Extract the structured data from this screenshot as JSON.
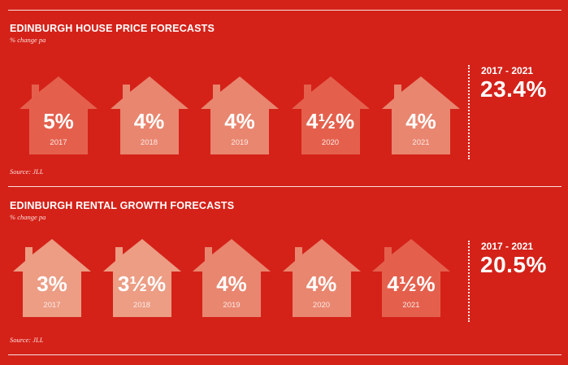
{
  "chart_data": [
    {
      "type": "pictogram",
      "title": "EDINBURGH HOUSE PRICE FORECASTS",
      "subtitle": "% change pa",
      "source": "Source: JLL",
      "categories": [
        "2017",
        "2018",
        "2019",
        "2020",
        "2021"
      ],
      "values": [
        5,
        4,
        4,
        4.5,
        4
      ],
      "value_labels": [
        "5%",
        "4%",
        "4%",
        "4½%",
        "4%"
      ],
      "total": {
        "label": "2017 - 2021",
        "value": "23.4%"
      },
      "colors": [
        "#e4604d",
        "#e9866f",
        "#e9866f",
        "#e4604d",
        "#e9866f"
      ]
    },
    {
      "type": "pictogram",
      "title": "EDINBURGH RENTAL GROWTH FORECASTS",
      "subtitle": "% change pa",
      "source": "Source: JLL",
      "categories": [
        "2017",
        "2018",
        "2019",
        "2020",
        "2021"
      ],
      "values": [
        3,
        3.5,
        4,
        4,
        4.5
      ],
      "value_labels": [
        "3%",
        "3½%",
        "4%",
        "4%",
        "4½%"
      ],
      "total": {
        "label": "2017 - 2021",
        "value": "20.5%"
      },
      "colors": [
        "#ec9d84",
        "#ec9d84",
        "#e9866f",
        "#e9866f",
        "#e4604d"
      ]
    }
  ]
}
